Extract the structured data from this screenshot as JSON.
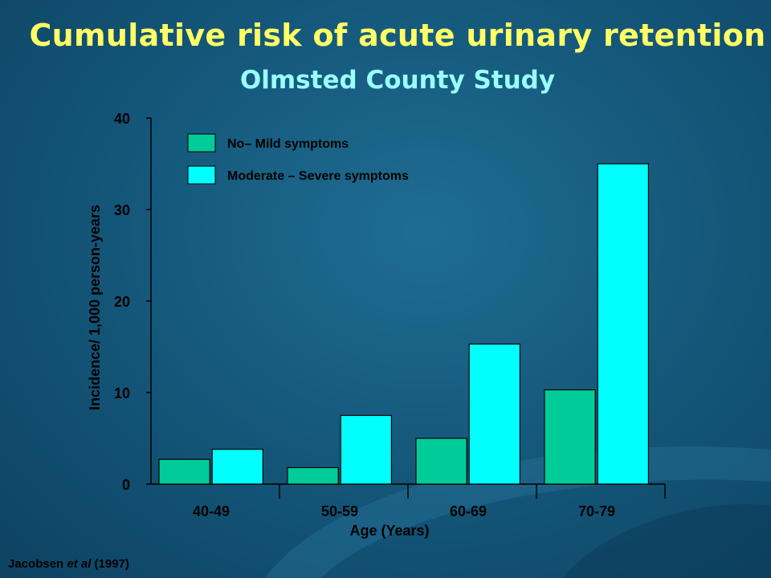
{
  "title": "Cumulative risk of acute urinary retention",
  "subtitle": "Olmsted County Study",
  "source": {
    "author": "Jacobsen ",
    "etal": "et al",
    "year": " (1997)"
  },
  "colors": {
    "background": "#15597c",
    "title": "#ffff66",
    "subtitle": "#99ffff",
    "axis": "#000000"
  },
  "chart_data": {
    "type": "bar",
    "categories": [
      "40-49",
      "50-59",
      "60-69",
      "70-79"
    ],
    "series": [
      {
        "name": "No– Mild symptoms",
        "values": [
          2.7,
          1.8,
          5.0,
          10.3
        ],
        "color": "#00cc99"
      },
      {
        "name": "Moderate – Severe symptoms",
        "values": [
          3.8,
          7.5,
          15.3,
          35.0
        ],
        "color": "#00ffff"
      }
    ],
    "xlabel": "Age (Years)",
    "ylabel": "Incidence/ 1,000 person-years",
    "ylim": [
      0,
      40
    ],
    "yticks": [
      "0",
      "10",
      "20",
      "30",
      "40"
    ],
    "grid": false,
    "legend": "top-left"
  }
}
